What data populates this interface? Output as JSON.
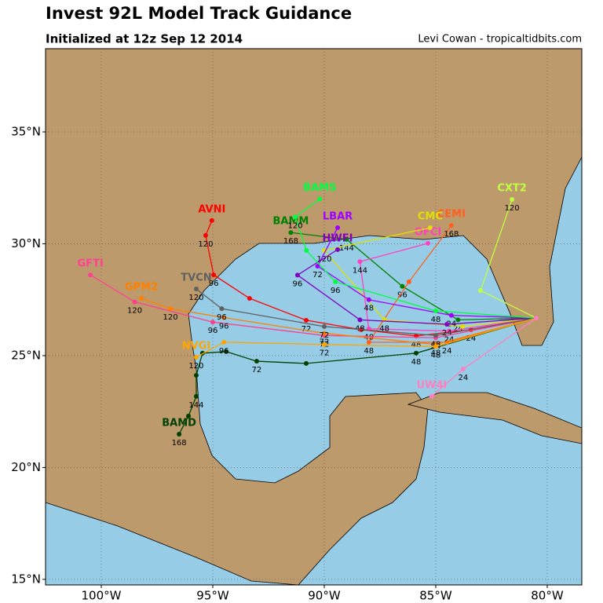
{
  "header": {
    "title": "Invest 92L Model Track Guidance",
    "subtitle": "Initialized at 12z Sep 12 2014",
    "credit": "Levi Cowan - tropicaltidbits.com"
  },
  "map": {
    "lonlim": [
      -102.5,
      -78.45
    ],
    "latlim": [
      14.75,
      38.72
    ],
    "xticks": [
      {
        "value": -100,
        "label": "100°W"
      },
      {
        "value": -95,
        "label": "95°W"
      },
      {
        "value": -90,
        "label": "90°W"
      },
      {
        "value": -85,
        "label": "85°W"
      },
      {
        "value": -80,
        "label": "80°W"
      }
    ],
    "yticks": [
      {
        "value": 15,
        "label": "15°N"
      },
      {
        "value": 20,
        "label": "20°N"
      },
      {
        "value": 25,
        "label": "25°N"
      },
      {
        "value": 30,
        "label": "30°N"
      },
      {
        "value": 35,
        "label": "35°N"
      }
    ]
  },
  "tracks": [
    {
      "name": "AVNI",
      "color": "#ff0000",
      "lon": [
        -80.49,
        -83.42,
        -85.88,
        -88.35,
        -90.81,
        -93.35,
        -94.96,
        -95.32,
        -95.04
      ],
      "lat": [
        26.68,
        26.16,
        25.88,
        26.16,
        26.58,
        27.56,
        28.61,
        30.37,
        31.04
      ],
      "hours": [
        null,
        "24",
        "48",
        null,
        "72",
        null,
        "96",
        "120",
        null
      ]
    },
    {
      "name": "BAMD",
      "color": "#004000",
      "lon": [
        -80.49,
        -85.88,
        -90.81,
        -93.03,
        -94.4,
        -95.46,
        -95.74,
        -95.74,
        -96.09,
        -96.51
      ],
      "lat": [
        26.68,
        25.11,
        24.65,
        24.75,
        25.18,
        25.11,
        24.12,
        23.18,
        22.3,
        21.49
      ],
      "hours": [
        null,
        "48",
        null,
        "72",
        null,
        null,
        null,
        "144",
        null,
        "168"
      ]
    },
    {
      "name": "CXT2",
      "color": "#c0ff40",
      "lon": [
        -80.49,
        -82.99,
        -81.58
      ],
      "lat": [
        26.68,
        27.91,
        31.98
      ],
      "hours": [
        null,
        null,
        "120"
      ]
    },
    {
      "name": "BAMM",
      "color": "#008000",
      "lon": [
        -80.49,
        -84.0,
        -86.5,
        -89.0,
        -91.5
      ],
      "lat": [
        26.68,
        26.6,
        28.1,
        30.2,
        30.5
      ],
      "hours": [
        null,
        "24",
        "96",
        "144",
        "168"
      ]
    },
    {
      "name": "CEMI",
      "color": "#ff6020",
      "lon": [
        -80.49,
        -84.5,
        -88.0,
        -86.2,
        -84.3
      ],
      "lat": [
        26.68,
        25.6,
        25.6,
        28.3,
        30.82
      ],
      "hours": [
        null,
        "24",
        "48",
        null,
        "168"
      ]
    },
    {
      "name": "OFCI",
      "color": "#ff40c0",
      "lon": [
        -80.49,
        -84.4,
        -88.0,
        -88.4,
        -85.35
      ],
      "lat": [
        26.68,
        26.1,
        26.2,
        29.2,
        30.02
      ],
      "hours": [
        null,
        "24",
        "48",
        "144",
        null
      ]
    },
    {
      "name": "CMC",
      "color": "#e0e000",
      "lon": [
        -80.49,
        -83.8,
        -87.3,
        -90.0,
        -85.25
      ],
      "lat": [
        26.68,
        26.3,
        26.6,
        29.7,
        30.72
      ],
      "hours": [
        null,
        null,
        "48",
        "120",
        null
      ]
    },
    {
      "name": "LBAR",
      "color": "#a000ff",
      "lon": [
        -80.49,
        -84.3,
        -88.0,
        -90.3,
        -89.4
      ],
      "lat": [
        26.68,
        26.8,
        27.5,
        29.0,
        30.72
      ],
      "hours": [
        null,
        "24",
        "48",
        "72",
        null
      ]
    },
    {
      "name": "HWFI",
      "color": "#8000c0",
      "lon": [
        -80.49,
        -84.5,
        -88.4,
        -91.2,
        -89.4
      ],
      "lat": [
        26.68,
        26.4,
        26.6,
        28.6,
        29.74
      ],
      "hours": [
        null,
        "24",
        "48",
        "96",
        null
      ]
    },
    {
      "name": "BAMS",
      "color": "#00ff40",
      "lon": [
        -80.49,
        -85.0,
        -89.5,
        -90.8,
        -91.3,
        -90.2
      ],
      "lat": [
        26.68,
        27.0,
        28.3,
        29.7,
        31.2,
        32.0
      ],
      "hours": [
        null,
        "48",
        "96",
        null,
        "120",
        null
      ]
    },
    {
      "name": "GFTI",
      "color": "#ff4090",
      "lon": [
        -80.49,
        -85.0,
        -90.0,
        -95.0,
        -98.5,
        -100.49
      ],
      "lat": [
        26.68,
        25.8,
        25.9,
        26.5,
        27.4,
        28.61
      ],
      "hours": [
        null,
        "24",
        "72",
        "96",
        "120",
        null
      ]
    },
    {
      "name": "GPM2",
      "color": "#ff8000",
      "lon": [
        -80.49,
        -85.0,
        -90.0,
        -94.5,
        -96.9,
        -98.2
      ],
      "lat": [
        26.68,
        25.5,
        26.0,
        26.7,
        27.1,
        27.56
      ],
      "hours": [
        null,
        "48",
        "72",
        "96",
        "120",
        null
      ]
    },
    {
      "name": "TVCN",
      "color": "#606060",
      "lon": [
        -80.49,
        -85.0,
        -90.0,
        -94.6,
        -95.74
      ],
      "lat": [
        26.68,
        25.9,
        26.3,
        27.1,
        27.98
      ],
      "hours": [
        null,
        "48",
        "72",
        "96",
        "120"
      ]
    },
    {
      "name": "NVGI",
      "color": "#ffa500",
      "lon": [
        -80.49,
        -85.0,
        -90.0,
        -94.5,
        -95.74
      ],
      "lat": [
        26.68,
        25.4,
        25.5,
        25.6,
        24.93
      ],
      "hours": [
        null,
        "48",
        "72",
        "96",
        "120"
      ]
    },
    {
      "name": "UW4I",
      "color": "#ff80c0",
      "lon": [
        -80.49,
        -83.77,
        -85.18
      ],
      "lat": [
        26.68,
        24.4,
        23.18
      ],
      "hours": [
        null,
        "24",
        null
      ]
    }
  ]
}
